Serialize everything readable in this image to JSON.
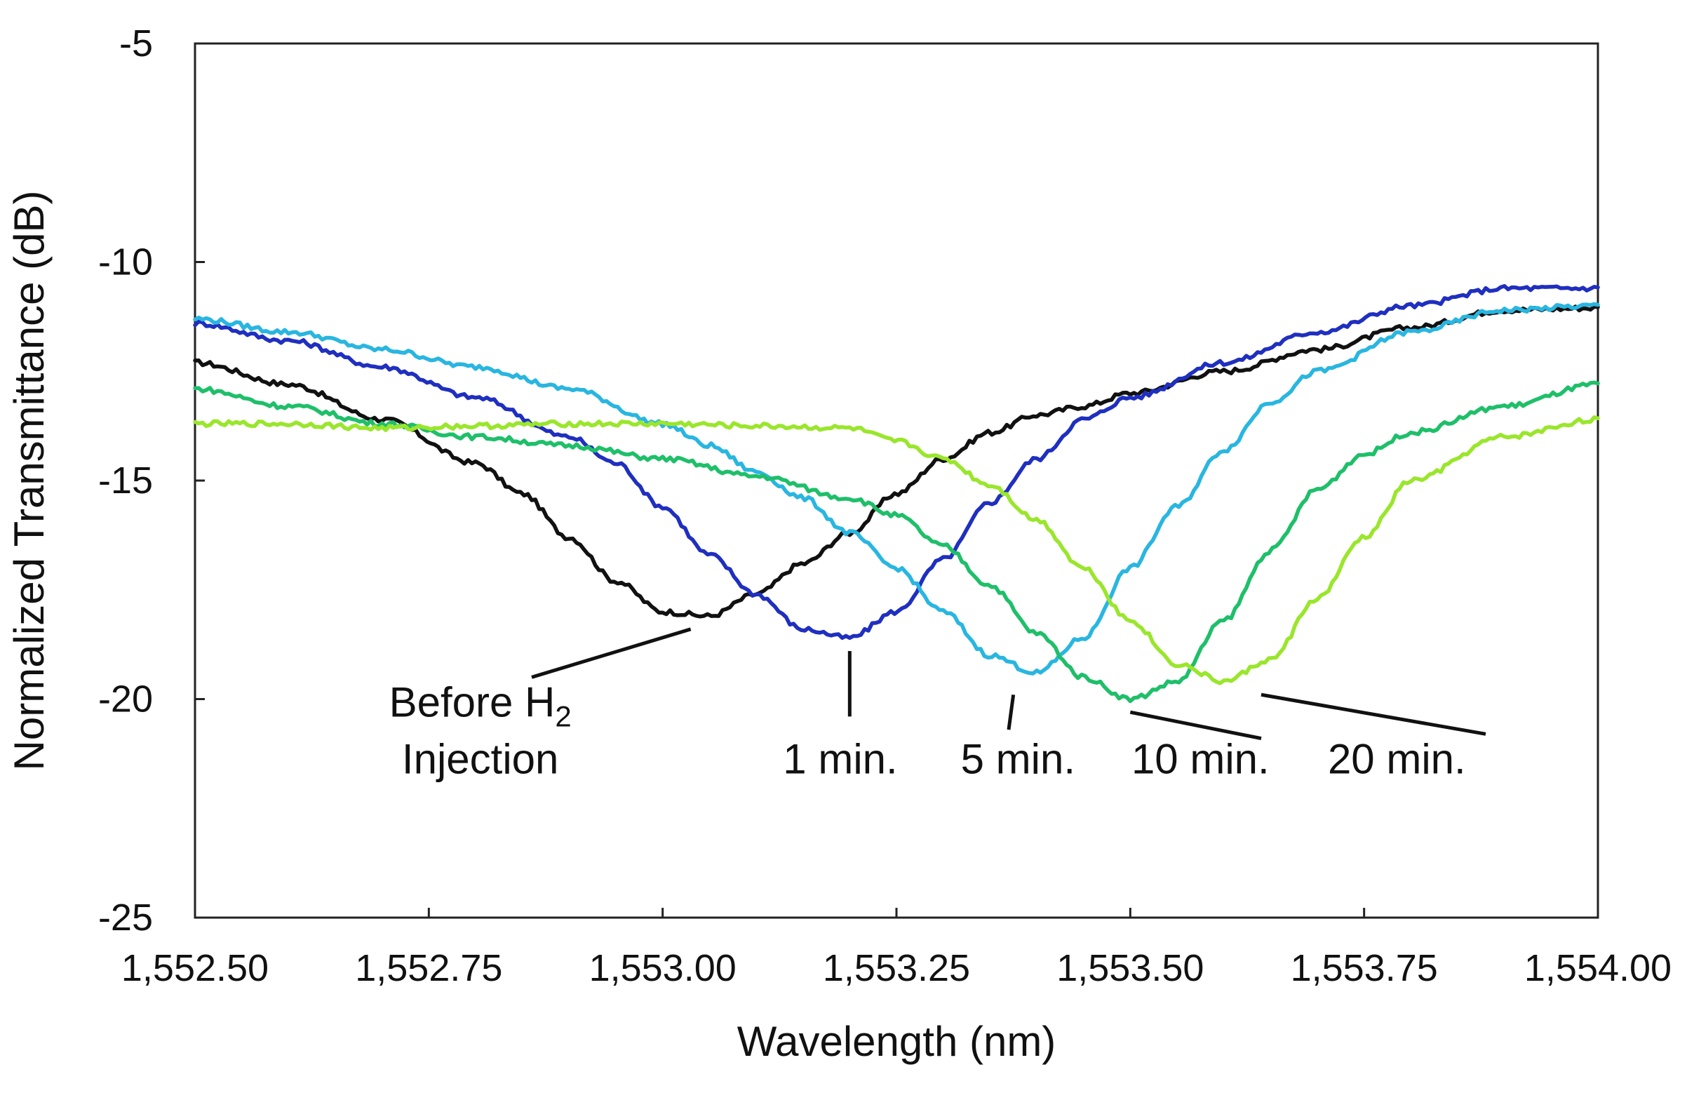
{
  "chart_data": {
    "type": "line",
    "xlabel": "Wavelength (nm)",
    "ylabel": "Normalized Transmittance (dB)",
    "xlim": [
      1552.5,
      1554.0
    ],
    "ylim": [
      -25,
      -5
    ],
    "x_ticks": [
      1552.5,
      1552.75,
      1553.0,
      1553.25,
      1553.5,
      1553.75,
      1554.0
    ],
    "x_tick_labels": [
      "1,552.50",
      "1,552.75",
      "1,553.00",
      "1,553.25",
      "1,553.50",
      "1,553.75",
      "1,554.00"
    ],
    "y_ticks": [
      -5,
      -10,
      -15,
      -20,
      -25
    ],
    "y_tick_labels": [
      "-5",
      "-10",
      "-15",
      "-20",
      "-25"
    ],
    "grid": false,
    "series": [
      {
        "name": "Before H2 Injection",
        "color": "#111111",
        "points": [
          [
            1552.5,
            -12.3
          ],
          [
            1552.6,
            -12.8
          ],
          [
            1552.7,
            -13.6
          ],
          [
            1552.8,
            -14.6
          ],
          [
            1552.85,
            -15.3
          ],
          [
            1552.9,
            -16.3
          ],
          [
            1552.95,
            -17.3
          ],
          [
            1553.0,
            -18.0
          ],
          [
            1553.05,
            -18.1
          ],
          [
            1553.1,
            -17.6
          ],
          [
            1553.15,
            -16.9
          ],
          [
            1553.2,
            -16.2
          ],
          [
            1553.25,
            -15.3
          ],
          [
            1553.3,
            -14.5
          ],
          [
            1553.35,
            -13.9
          ],
          [
            1553.4,
            -13.5
          ],
          [
            1553.45,
            -13.3
          ],
          [
            1553.5,
            -13.0
          ],
          [
            1553.6,
            -12.5
          ],
          [
            1553.7,
            -12.0
          ],
          [
            1553.8,
            -11.5
          ],
          [
            1553.9,
            -11.1
          ],
          [
            1554.0,
            -11.05
          ]
        ]
      },
      {
        "name": "1 min.",
        "color": "#1f2fbf",
        "points": [
          [
            1552.5,
            -11.4
          ],
          [
            1552.6,
            -11.8
          ],
          [
            1552.7,
            -12.4
          ],
          [
            1552.8,
            -13.1
          ],
          [
            1552.9,
            -14.0
          ],
          [
            1552.95,
            -14.6
          ],
          [
            1553.0,
            -15.6
          ],
          [
            1553.05,
            -16.7
          ],
          [
            1553.1,
            -17.6
          ],
          [
            1553.15,
            -18.4
          ],
          [
            1553.2,
            -18.6
          ],
          [
            1553.25,
            -18.0
          ],
          [
            1553.3,
            -16.8
          ],
          [
            1553.35,
            -15.5
          ],
          [
            1553.4,
            -14.5
          ],
          [
            1553.45,
            -13.6
          ],
          [
            1553.5,
            -13.1
          ],
          [
            1553.6,
            -12.3
          ],
          [
            1553.7,
            -11.6
          ],
          [
            1553.8,
            -11.0
          ],
          [
            1553.9,
            -10.6
          ],
          [
            1554.0,
            -10.6
          ]
        ]
      },
      {
        "name": "5 min.",
        "color": "#29b6e0",
        "points": [
          [
            1552.5,
            -11.3
          ],
          [
            1552.6,
            -11.6
          ],
          [
            1552.7,
            -12.0
          ],
          [
            1552.8,
            -12.4
          ],
          [
            1552.9,
            -12.9
          ],
          [
            1553.0,
            -13.7
          ],
          [
            1553.05,
            -14.2
          ],
          [
            1553.1,
            -14.8
          ],
          [
            1553.15,
            -15.4
          ],
          [
            1553.2,
            -16.2
          ],
          [
            1553.25,
            -17.0
          ],
          [
            1553.3,
            -18.0
          ],
          [
            1553.35,
            -19.0
          ],
          [
            1553.4,
            -19.4
          ],
          [
            1553.45,
            -18.6
          ],
          [
            1553.5,
            -17.0
          ],
          [
            1553.55,
            -15.6
          ],
          [
            1553.6,
            -14.3
          ],
          [
            1553.65,
            -13.2
          ],
          [
            1553.7,
            -12.5
          ],
          [
            1553.8,
            -11.6
          ],
          [
            1553.9,
            -11.1
          ],
          [
            1554.0,
            -11.0
          ]
        ]
      },
      {
        "name": "10 min.",
        "color": "#1fbf6a",
        "points": [
          [
            1552.5,
            -12.9
          ],
          [
            1552.6,
            -13.3
          ],
          [
            1552.7,
            -13.7
          ],
          [
            1552.8,
            -14.0
          ],
          [
            1552.9,
            -14.2
          ],
          [
            1553.0,
            -14.5
          ],
          [
            1553.1,
            -14.9
          ],
          [
            1553.2,
            -15.4
          ],
          [
            1553.25,
            -15.8
          ],
          [
            1553.3,
            -16.5
          ],
          [
            1553.35,
            -17.4
          ],
          [
            1553.4,
            -18.5
          ],
          [
            1553.45,
            -19.5
          ],
          [
            1553.5,
            -20.0
          ],
          [
            1553.55,
            -19.6
          ],
          [
            1553.6,
            -18.2
          ],
          [
            1553.65,
            -16.6
          ],
          [
            1553.7,
            -15.2
          ],
          [
            1553.75,
            -14.4
          ],
          [
            1553.8,
            -13.9
          ],
          [
            1553.9,
            -13.3
          ],
          [
            1554.0,
            -12.8
          ]
        ]
      },
      {
        "name": "20 min.",
        "color": "#9ae62c",
        "points": [
          [
            1552.5,
            -13.7
          ],
          [
            1552.6,
            -13.7
          ],
          [
            1552.7,
            -13.8
          ],
          [
            1552.8,
            -13.75
          ],
          [
            1552.9,
            -13.7
          ],
          [
            1553.0,
            -13.7
          ],
          [
            1553.1,
            -13.75
          ],
          [
            1553.2,
            -13.8
          ],
          [
            1553.25,
            -14.1
          ],
          [
            1553.3,
            -14.5
          ],
          [
            1553.35,
            -15.1
          ],
          [
            1553.4,
            -15.9
          ],
          [
            1553.45,
            -17.0
          ],
          [
            1553.5,
            -18.2
          ],
          [
            1553.55,
            -19.2
          ],
          [
            1553.6,
            -19.6
          ],
          [
            1553.65,
            -19.1
          ],
          [
            1553.7,
            -17.7
          ],
          [
            1553.75,
            -16.3
          ],
          [
            1553.8,
            -15.0
          ],
          [
            1553.9,
            -14.0
          ],
          [
            1554.0,
            -13.6
          ]
        ]
      }
    ],
    "annotations": [
      {
        "lines": [
          "Before H",
          "Injection"
        ],
        "subscript": "2"
      },
      {
        "lines": [
          "1 min."
        ]
      },
      {
        "lines": [
          "5 min."
        ]
      },
      {
        "lines": [
          "10 min."
        ]
      },
      {
        "lines": [
          "20 min."
        ]
      }
    ]
  }
}
